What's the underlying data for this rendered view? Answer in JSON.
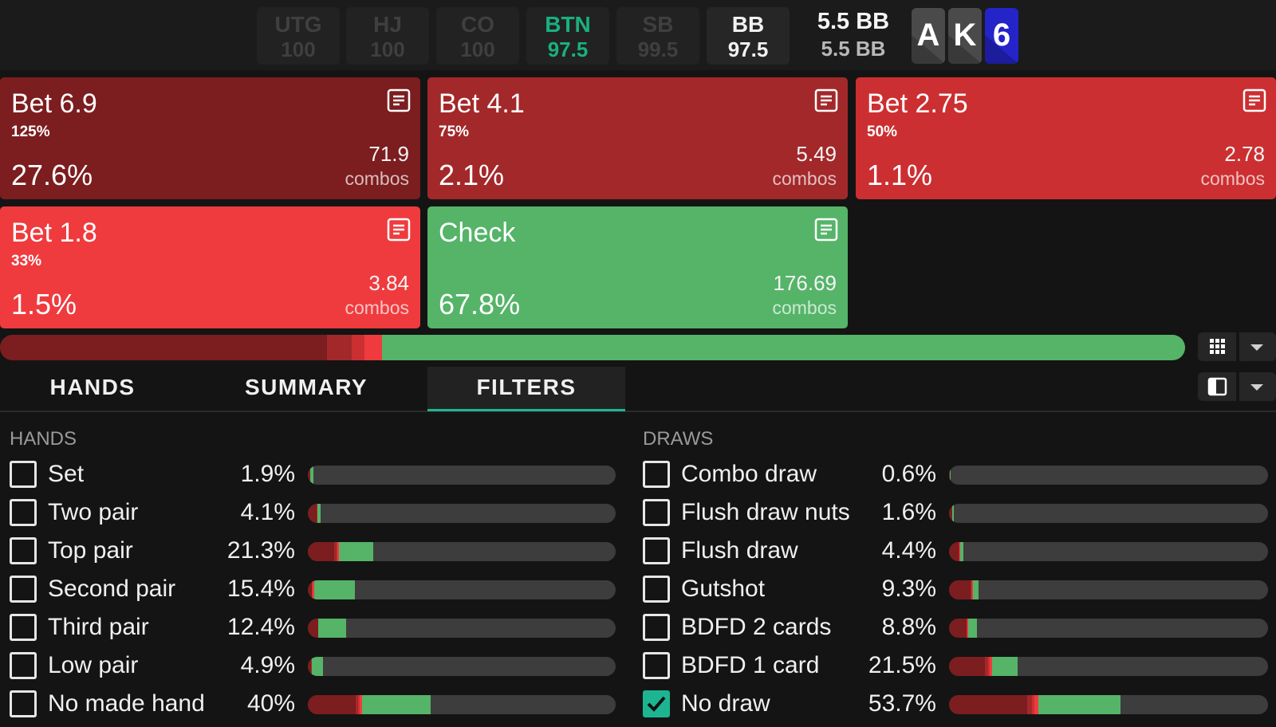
{
  "colors": {
    "bet_6_9": "#7c1d1f",
    "bet_4_1": "#a3282a",
    "bet_2_75": "#cc2f31",
    "bet_1_8": "#ef3b3e",
    "check": "#55b468",
    "hero": "#19b07f",
    "accent": "#1db591"
  },
  "seats": [
    {
      "name": "UTG",
      "stack": "100",
      "state": "dim"
    },
    {
      "name": "HJ",
      "stack": "100",
      "state": "dim"
    },
    {
      "name": "CO",
      "stack": "100",
      "state": "dim"
    },
    {
      "name": "BTN",
      "stack": "97.5",
      "state": "hero"
    },
    {
      "name": "SB",
      "stack": "99.5",
      "state": "dim"
    },
    {
      "name": "BB",
      "stack": "97.5",
      "state": "active"
    }
  ],
  "pot": {
    "line1": "5.5 BB",
    "line2": "5.5 BB"
  },
  "board": [
    {
      "rank": "A",
      "color": "#4a4a4a"
    },
    {
      "rank": "K",
      "color": "#4a4a4a"
    },
    {
      "rank": "6",
      "color": "#2424c8"
    }
  ],
  "actions": [
    {
      "title": "Bet 6.9",
      "size_pct": "125%",
      "freq": "27.6%",
      "combos": "71.9",
      "combos_label": "combos",
      "color": "#7c1d1f"
    },
    {
      "title": "Bet 4.1",
      "size_pct": "75%",
      "freq": "2.1%",
      "combos": "5.49",
      "combos_label": "combos",
      "color": "#a3282a"
    },
    {
      "title": "Bet 2.75",
      "size_pct": "50%",
      "freq": "1.1%",
      "combos": "2.78",
      "combos_label": "combos",
      "color": "#cc2f31"
    },
    {
      "title": "Bet 1.8",
      "size_pct": "33%",
      "freq": "1.5%",
      "combos": "3.84",
      "combos_label": "combos",
      "color": "#ef3b3e"
    },
    {
      "title": "Check",
      "size_pct": "",
      "freq": "67.8%",
      "combos": "176.69",
      "combos_label": "combos",
      "color": "#55b468"
    }
  ],
  "strategy_mix": [
    27.6,
    2.1,
    1.1,
    1.5,
    67.8
  ],
  "tabs": [
    {
      "label": "HANDS",
      "active": false
    },
    {
      "label": "SUMMARY",
      "active": false
    },
    {
      "label": "FILTERS",
      "active": true
    }
  ],
  "filters": {
    "hands": {
      "title": "HANDS",
      "rows": [
        {
          "label": "Set",
          "value": "1.9%",
          "checked": false,
          "mix": [
            0.9,
            0,
            0,
            0,
            1.0
          ]
        },
        {
          "label": "Two pair",
          "value": "4.1%",
          "checked": false,
          "mix": [
            2.9,
            0.1,
            0.1,
            0.1,
            0.9
          ]
        },
        {
          "label": "Top pair",
          "value": "21.3%",
          "checked": false,
          "mix": [
            8.5,
            0.8,
            0.4,
            0.5,
            11.1
          ]
        },
        {
          "label": "Second pair",
          "value": "15.4%",
          "checked": false,
          "mix": [
            1.2,
            0.2,
            0.2,
            0.4,
            13.4
          ]
        },
        {
          "label": "Third pair",
          "value": "12.4%",
          "checked": false,
          "mix": [
            3.4,
            0.1,
            0,
            0,
            8.9
          ]
        },
        {
          "label": "Low pair",
          "value": "4.9%",
          "checked": false,
          "mix": [
            1.1,
            0.1,
            0,
            0.2,
            3.5
          ]
        },
        {
          "label": "No made hand",
          "value": "40%",
          "checked": false,
          "mix": [
            15.5,
            0.8,
            0.5,
            0.9,
            22.3
          ]
        }
      ]
    },
    "draws": {
      "title": "DRAWS",
      "rows": [
        {
          "label": "Combo draw",
          "value": "0.6%",
          "checked": false,
          "mix": [
            0.3,
            0,
            0,
            0,
            0.3
          ]
        },
        {
          "label": "Flush draw nuts",
          "value": "1.6%",
          "checked": false,
          "mix": [
            0.9,
            0,
            0,
            0,
            0.7
          ]
        },
        {
          "label": "Flush draw",
          "value": "4.4%",
          "checked": false,
          "mix": [
            3.0,
            0.2,
            0.1,
            0.1,
            1.0
          ]
        },
        {
          "label": "Gutshot",
          "value": "9.3%",
          "checked": false,
          "mix": [
            6.8,
            0.3,
            0.1,
            0.3,
            1.8
          ]
        },
        {
          "label": "BDFD 2 cards",
          "value": "8.8%",
          "checked": false,
          "mix": [
            5.4,
            0.2,
            0.2,
            0.2,
            2.8
          ]
        },
        {
          "label": "BDFD 1 card",
          "value": "21.5%",
          "checked": false,
          "mix": [
            11.2,
            1.0,
            0.6,
            0.7,
            8.0
          ]
        },
        {
          "label": "No draw",
          "value": "53.7%",
          "checked": true,
          "mix": [
            24.5,
            1.4,
            0.8,
            1.3,
            25.7
          ]
        }
      ]
    }
  }
}
